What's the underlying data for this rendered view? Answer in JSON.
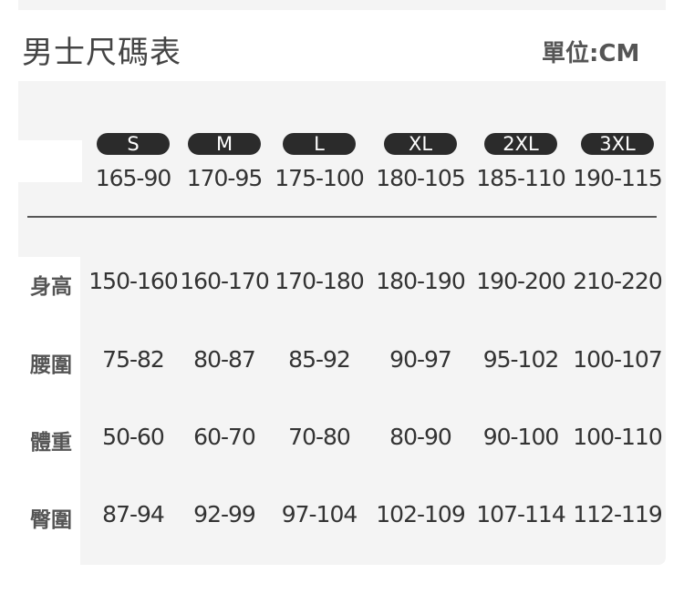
{
  "title": "男士尺碼表",
  "unit": "單位:CM",
  "sizes": [
    {
      "label": "S",
      "code": "165-90"
    },
    {
      "label": "M",
      "code": "170-95"
    },
    {
      "label": "L",
      "code": "175-100"
    },
    {
      "label": "XL",
      "code": "180-105"
    },
    {
      "label": "2XL",
      "code": "185-110"
    },
    {
      "label": "3XL",
      "code": "190-115"
    }
  ],
  "rows": [
    {
      "label": "身高",
      "values": [
        "150-160",
        "160-170",
        "170-180",
        "180-190",
        "190-200",
        "210-220"
      ]
    },
    {
      "label": "腰圍",
      "values": [
        "75-82",
        "80-87",
        "85-92",
        "90-97",
        "95-102",
        "100-107"
      ]
    },
    {
      "label": "體重",
      "values": [
        "50-60",
        "60-70",
        "70-80",
        "80-90",
        "90-100",
        "100-110"
      ]
    },
    {
      "label": "臀圍",
      "values": [
        "87-94",
        "92-99",
        "97-104",
        "102-109",
        "107-114",
        "112-119"
      ]
    }
  ]
}
